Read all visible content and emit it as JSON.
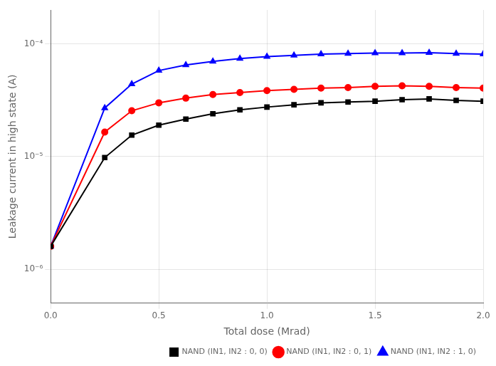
{
  "chart_data": {
    "type": "line",
    "xlabel": "Total dose (Mrad)",
    "ylabel": "Leakage current in high state (A)",
    "x": [
      0.0,
      0.25,
      0.375,
      0.5,
      0.625,
      0.75,
      0.875,
      1.0,
      1.125,
      1.25,
      1.375,
      1.5,
      1.625,
      1.75,
      1.875,
      2.0
    ],
    "series": [
      {
        "name": "NAND (IN1, IN2 : 0, 0)",
        "color": "#000000",
        "marker": "square",
        "values": [
          1.6e-06,
          9.8e-06,
          1.55e-05,
          1.9e-05,
          2.15e-05,
          2.4e-05,
          2.6e-05,
          2.75e-05,
          2.88e-05,
          3e-05,
          3.05e-05,
          3.1e-05,
          3.2e-05,
          3.25e-05,
          3.15e-05,
          3.1e-05
        ]
      },
      {
        "name": "NAND (IN1, IN2 : 0, 1)",
        "color": "#ff0000",
        "marker": "circle",
        "values": [
          1.6e-06,
          1.65e-05,
          2.55e-05,
          3e-05,
          3.3e-05,
          3.55e-05,
          3.7e-05,
          3.85e-05,
          3.95e-05,
          4.05e-05,
          4.1e-05,
          4.2e-05,
          4.25e-05,
          4.2e-05,
          4.1e-05,
          4.05e-05
        ]
      },
      {
        "name": "NAND (IN1, IN2 : 1, 0)",
        "color": "#0000ff",
        "marker": "triangle",
        "values": [
          1.6e-06,
          2.7e-05,
          4.4e-05,
          5.8e-05,
          6.5e-05,
          7e-05,
          7.4e-05,
          7.7e-05,
          7.9e-05,
          8.1e-05,
          8.2e-05,
          8.3e-05,
          8.3e-05,
          8.35e-05,
          8.2e-05,
          8.1e-05
        ]
      }
    ],
    "xlim": [
      0.0,
      2.0
    ],
    "ylim": [
      5e-07,
      0.0002
    ],
    "xticks": [
      {
        "value": 0.0,
        "label": "0.0"
      },
      0.5,
      {
        "value": 1.0,
        "label": "1.0"
      },
      1.5,
      {
        "value": 2.0,
        "label": "2.0"
      }
    ],
    "yticks": [
      {
        "value": 1e-06,
        "label": "10⁻⁶"
      },
      {
        "value": 1e-05,
        "label": "10⁻⁵"
      },
      {
        "value": 0.0001,
        "label": "10⁻⁴"
      }
    ],
    "log": "y",
    "grid": true,
    "legend": "lower right"
  }
}
